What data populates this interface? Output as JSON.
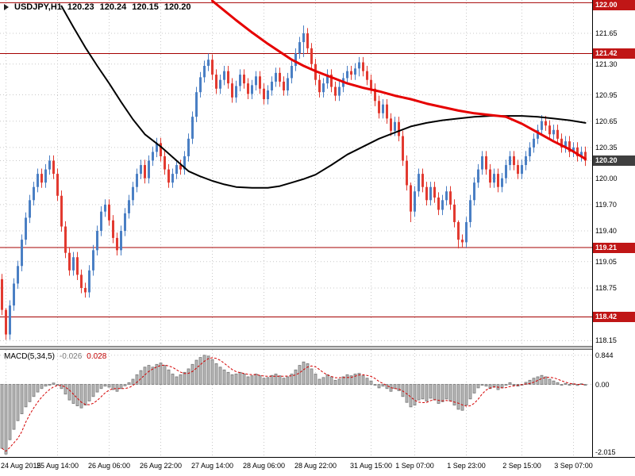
{
  "header": {
    "symbol": "USDJPY,H1",
    "open": "120.23",
    "high": "120.24",
    "low": "120.15",
    "close": "120.20"
  },
  "macd_panel": {
    "name": "MACD(5,34,5)",
    "main_value": "-0.026",
    "signal_value": "0.028"
  },
  "price_axis": {
    "ticks": [
      "121.65",
      "121.30",
      "120.95",
      "120.65",
      "120.35",
      "120.00",
      "119.70",
      "119.40",
      "119.05",
      "118.75",
      "118.15"
    ],
    "level_badges": [
      "122.00",
      "121.42",
      "119.21",
      "118.42"
    ],
    "current_badge": "120.20"
  },
  "macd_axis": {
    "ticks": [
      "0.844",
      "0.00",
      "-2.015"
    ],
    "values": [
      0.844,
      0,
      -2.015
    ]
  },
  "time_axis": {
    "labels": [
      "24 Aug 2015",
      "25 Aug 14:00",
      "26 Aug 06:00",
      "26 Aug 22:00",
      "27 Aug 14:00",
      "28 Aug 06:00",
      "28 Aug 22:00",
      "31 Aug 15:00",
      "1 Sep 07:00",
      "1 Sep 23:00",
      "2 Sep 15:00",
      "3 Sep 07:00"
    ],
    "indices": [
      1,
      14,
      27,
      40,
      53,
      66,
      79,
      93,
      104,
      117,
      131,
      144
    ]
  },
  "colors": {
    "bull": "#4a7fc4",
    "bear": "#e23a30",
    "grid": "#c9c9c9",
    "level_line": "#a40000",
    "level_badge": "#c01616",
    "current_badge": "#3f3f3f",
    "hist_fill": "#b8b8b8",
    "hist_stroke": "#767676",
    "signal": "#d40000",
    "axis_text": "#000000"
  },
  "chart_data": [
    {
      "type": "candlestick",
      "title": "USDJPY,H1",
      "ylim": [
        118.09,
        122.03
      ],
      "x_labels": [
        "24 Aug 2015",
        "25 Aug 14:00",
        "26 Aug 06:00",
        "26 Aug 22:00",
        "27 Aug 14:00",
        "28 Aug 06:00",
        "28 Aug 22:00",
        "31 Aug 15:00",
        "1 Sep 07:00",
        "1 Sep 23:00",
        "2 Sep 15:00",
        "3 Sep 07:00"
      ],
      "first_open": 118.85,
      "default_wick": 0.06,
      "closes": [
        118.5,
        118.22,
        118.55,
        118.8,
        119.0,
        119.3,
        119.55,
        119.75,
        119.9,
        120.05,
        119.95,
        120.1,
        120.2,
        120.05,
        119.8,
        119.45,
        119.15,
        118.95,
        119.1,
        118.9,
        118.75,
        118.7,
        118.95,
        119.18,
        119.4,
        119.62,
        119.7,
        119.52,
        119.32,
        119.18,
        119.4,
        119.6,
        119.75,
        119.9,
        120.05,
        120.15,
        120.0,
        120.2,
        120.3,
        120.4,
        120.25,
        120.1,
        119.95,
        120.05,
        120.15,
        120.1,
        120.25,
        120.45,
        120.7,
        120.98,
        121.15,
        121.28,
        121.35,
        121.18,
        121.02,
        121.12,
        121.22,
        121.08,
        120.92,
        121.05,
        121.18,
        121.08,
        120.96,
        121.06,
        121.16,
        121.02,
        120.9,
        121.0,
        121.1,
        121.2,
        121.1,
        121.0,
        121.14,
        121.28,
        121.42,
        121.55,
        121.65,
        121.48,
        121.3,
        121.12,
        120.98,
        121.08,
        121.18,
        121.04,
        120.94,
        121.04,
        121.14,
        121.22,
        121.18,
        121.25,
        121.32,
        121.22,
        121.12,
        121.02,
        120.88,
        120.74,
        120.84,
        120.68,
        120.54,
        120.64,
        120.48,
        120.2,
        119.92,
        119.62,
        119.85,
        120.05,
        119.9,
        119.75,
        119.9,
        119.78,
        119.64,
        119.75,
        119.85,
        119.7,
        119.5,
        119.3,
        119.27,
        119.5,
        119.75,
        119.95,
        120.1,
        120.25,
        120.1,
        119.95,
        120.05,
        119.9,
        120.0,
        120.15,
        120.25,
        120.15,
        120.05,
        120.15,
        120.25,
        120.35,
        120.45,
        120.55,
        120.65,
        120.6,
        120.5,
        120.55,
        120.45,
        120.35,
        120.42,
        120.3,
        120.35,
        120.25,
        120.3,
        120.2
      ],
      "extremes": {
        "1": [
          118.52,
          118.16
        ],
        "52": [
          121.42,
          121.22
        ],
        "76": [
          121.74,
          121.38
        ],
        "90": [
          121.38,
          121.16
        ],
        "103": [
          119.95,
          119.5
        ],
        "115": [
          119.52,
          119.2
        ],
        "136": [
          120.72,
          120.5
        ]
      },
      "levels": [
        122.0,
        121.42,
        119.21,
        118.42
      ],
      "gridlines": [
        121.65,
        121.3,
        120.95,
        120.65,
        120.35,
        120.2,
        120.0,
        119.7,
        119.4,
        119.05,
        118.75,
        118.15
      ],
      "current_price": 120.2,
      "overlays": [
        {
          "name": "ma-black",
          "color": "#000000",
          "width": 2,
          "points": [
            [
              15,
              121.96
            ],
            [
              18,
              121.72
            ],
            [
              21,
              121.49
            ],
            [
              24,
              121.28
            ],
            [
              27,
              121.08
            ],
            [
              30,
              120.87
            ],
            [
              33,
              120.67
            ],
            [
              36,
              120.5
            ],
            [
              40,
              120.36
            ],
            [
              44,
              120.2
            ],
            [
              47,
              120.08
            ],
            [
              50,
              120.02
            ],
            [
              53,
              119.97
            ],
            [
              56,
              119.93
            ],
            [
              59,
              119.9
            ],
            [
              63,
              119.89
            ],
            [
              67,
              119.89
            ],
            [
              70,
              119.91
            ],
            [
              73,
              119.95
            ],
            [
              76,
              119.99
            ],
            [
              79,
              120.04
            ],
            [
              83,
              120.15
            ],
            [
              87,
              120.27
            ],
            [
              91,
              120.36
            ],
            [
              95,
              120.45
            ],
            [
              99,
              120.52
            ],
            [
              103,
              120.59
            ],
            [
              107,
              120.63
            ],
            [
              111,
              120.66
            ],
            [
              115,
              120.68
            ],
            [
              119,
              120.7
            ],
            [
              123,
              120.71
            ],
            [
              127,
              120.71
            ],
            [
              131,
              120.71
            ],
            [
              135,
              120.7
            ],
            [
              139,
              120.68
            ],
            [
              143,
              120.66
            ],
            [
              147,
              120.63
            ]
          ]
        },
        {
          "name": "ma-red",
          "color": "#e60000",
          "width": 3,
          "points": [
            [
              53,
              122.02
            ],
            [
              56,
              121.91
            ],
            [
              59,
              121.8
            ],
            [
              63,
              121.66
            ],
            [
              67,
              121.53
            ],
            [
              70,
              121.44
            ],
            [
              73,
              121.35
            ],
            [
              76,
              121.28
            ],
            [
              79,
              121.22
            ],
            [
              83,
              121.15
            ],
            [
              87,
              121.08
            ],
            [
              91,
              121.03
            ],
            [
              95,
              120.99
            ],
            [
              99,
              120.94
            ],
            [
              103,
              120.9
            ],
            [
              107,
              120.85
            ],
            [
              111,
              120.81
            ],
            [
              115,
              120.77
            ],
            [
              119,
              120.74
            ],
            [
              123,
              120.72
            ],
            [
              127,
              120.7
            ],
            [
              131,
              120.62
            ],
            [
              135,
              120.52
            ],
            [
              139,
              120.42
            ],
            [
              143,
              120.33
            ],
            [
              147,
              120.22
            ]
          ]
        }
      ]
    },
    {
      "type": "bar",
      "title": "MACD(5,34,5)",
      "ylim": [
        -2.1,
        1.0
      ],
      "yticks": [
        0.844,
        0,
        -2.015
      ],
      "signal_period": 5,
      "values": [
        -1.85,
        -2.015,
        -1.6,
        -1.3,
        -1.05,
        -0.85,
        -0.65,
        -0.5,
        -0.35,
        -0.22,
        -0.12,
        -0.05,
        0.0,
        0.04,
        -0.02,
        -0.12,
        -0.28,
        -0.45,
        -0.55,
        -0.62,
        -0.68,
        -0.6,
        -0.48,
        -0.35,
        -0.22,
        -0.12,
        -0.05,
        -0.08,
        -0.15,
        -0.2,
        -0.12,
        -0.04,
        0.05,
        0.15,
        0.28,
        0.4,
        0.5,
        0.55,
        0.5,
        0.58,
        0.62,
        0.55,
        0.42,
        0.3,
        0.22,
        0.28,
        0.35,
        0.45,
        0.58,
        0.7,
        0.78,
        0.844,
        0.82,
        0.72,
        0.6,
        0.5,
        0.42,
        0.35,
        0.28,
        0.3,
        0.35,
        0.3,
        0.22,
        0.25,
        0.3,
        0.25,
        0.18,
        0.2,
        0.26,
        0.3,
        0.25,
        0.18,
        0.22,
        0.3,
        0.42,
        0.55,
        0.65,
        0.6,
        0.45,
        0.3,
        0.15,
        0.2,
        0.28,
        0.22,
        0.12,
        0.15,
        0.22,
        0.28,
        0.25,
        0.3,
        0.32,
        0.25,
        0.18,
        0.1,
        0.0,
        -0.1,
        -0.05,
        -0.12,
        -0.2,
        -0.12,
        -0.18,
        -0.35,
        -0.52,
        -0.65,
        -0.6,
        -0.45,
        -0.42,
        -0.48,
        -0.4,
        -0.45,
        -0.55,
        -0.5,
        -0.42,
        -0.48,
        -0.6,
        -0.72,
        -0.75,
        -0.6,
        -0.42,
        -0.25,
        -0.1,
        0.0,
        -0.05,
        -0.12,
        -0.08,
        -0.15,
        -0.1,
        -0.02,
        0.05,
        0.0,
        -0.05,
        0.0,
        0.06,
        0.12,
        0.18,
        0.22,
        0.26,
        0.22,
        0.15,
        0.1,
        0.05,
        0.0,
        0.03,
        -0.02,
        0.02,
        -0.03,
        0.02,
        -0.026
      ]
    }
  ]
}
